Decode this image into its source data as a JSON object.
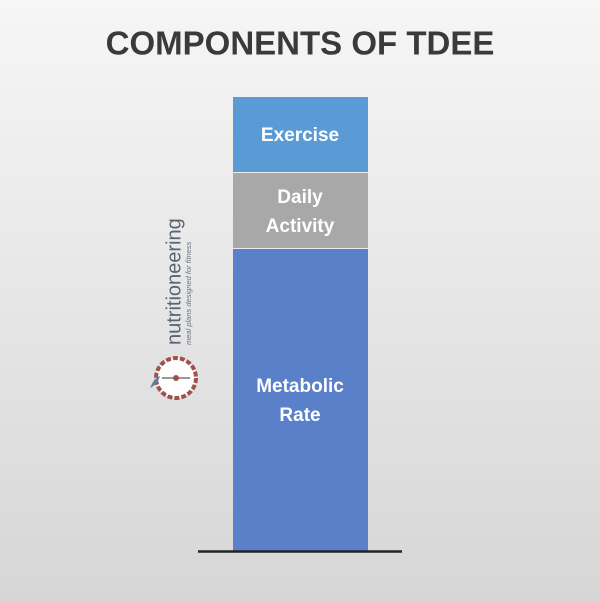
{
  "title": "COMPONENTS OF TDEE",
  "segments": [
    {
      "lines": [
        "Exercise"
      ]
    },
    {
      "lines": [
        "Daily",
        "Activity"
      ]
    },
    {
      "lines": [
        "Metabolic",
        "Rate"
      ]
    }
  ],
  "logo": {
    "name": "nutritioneering",
    "tagline": "meal plans designed for fitness"
  }
}
